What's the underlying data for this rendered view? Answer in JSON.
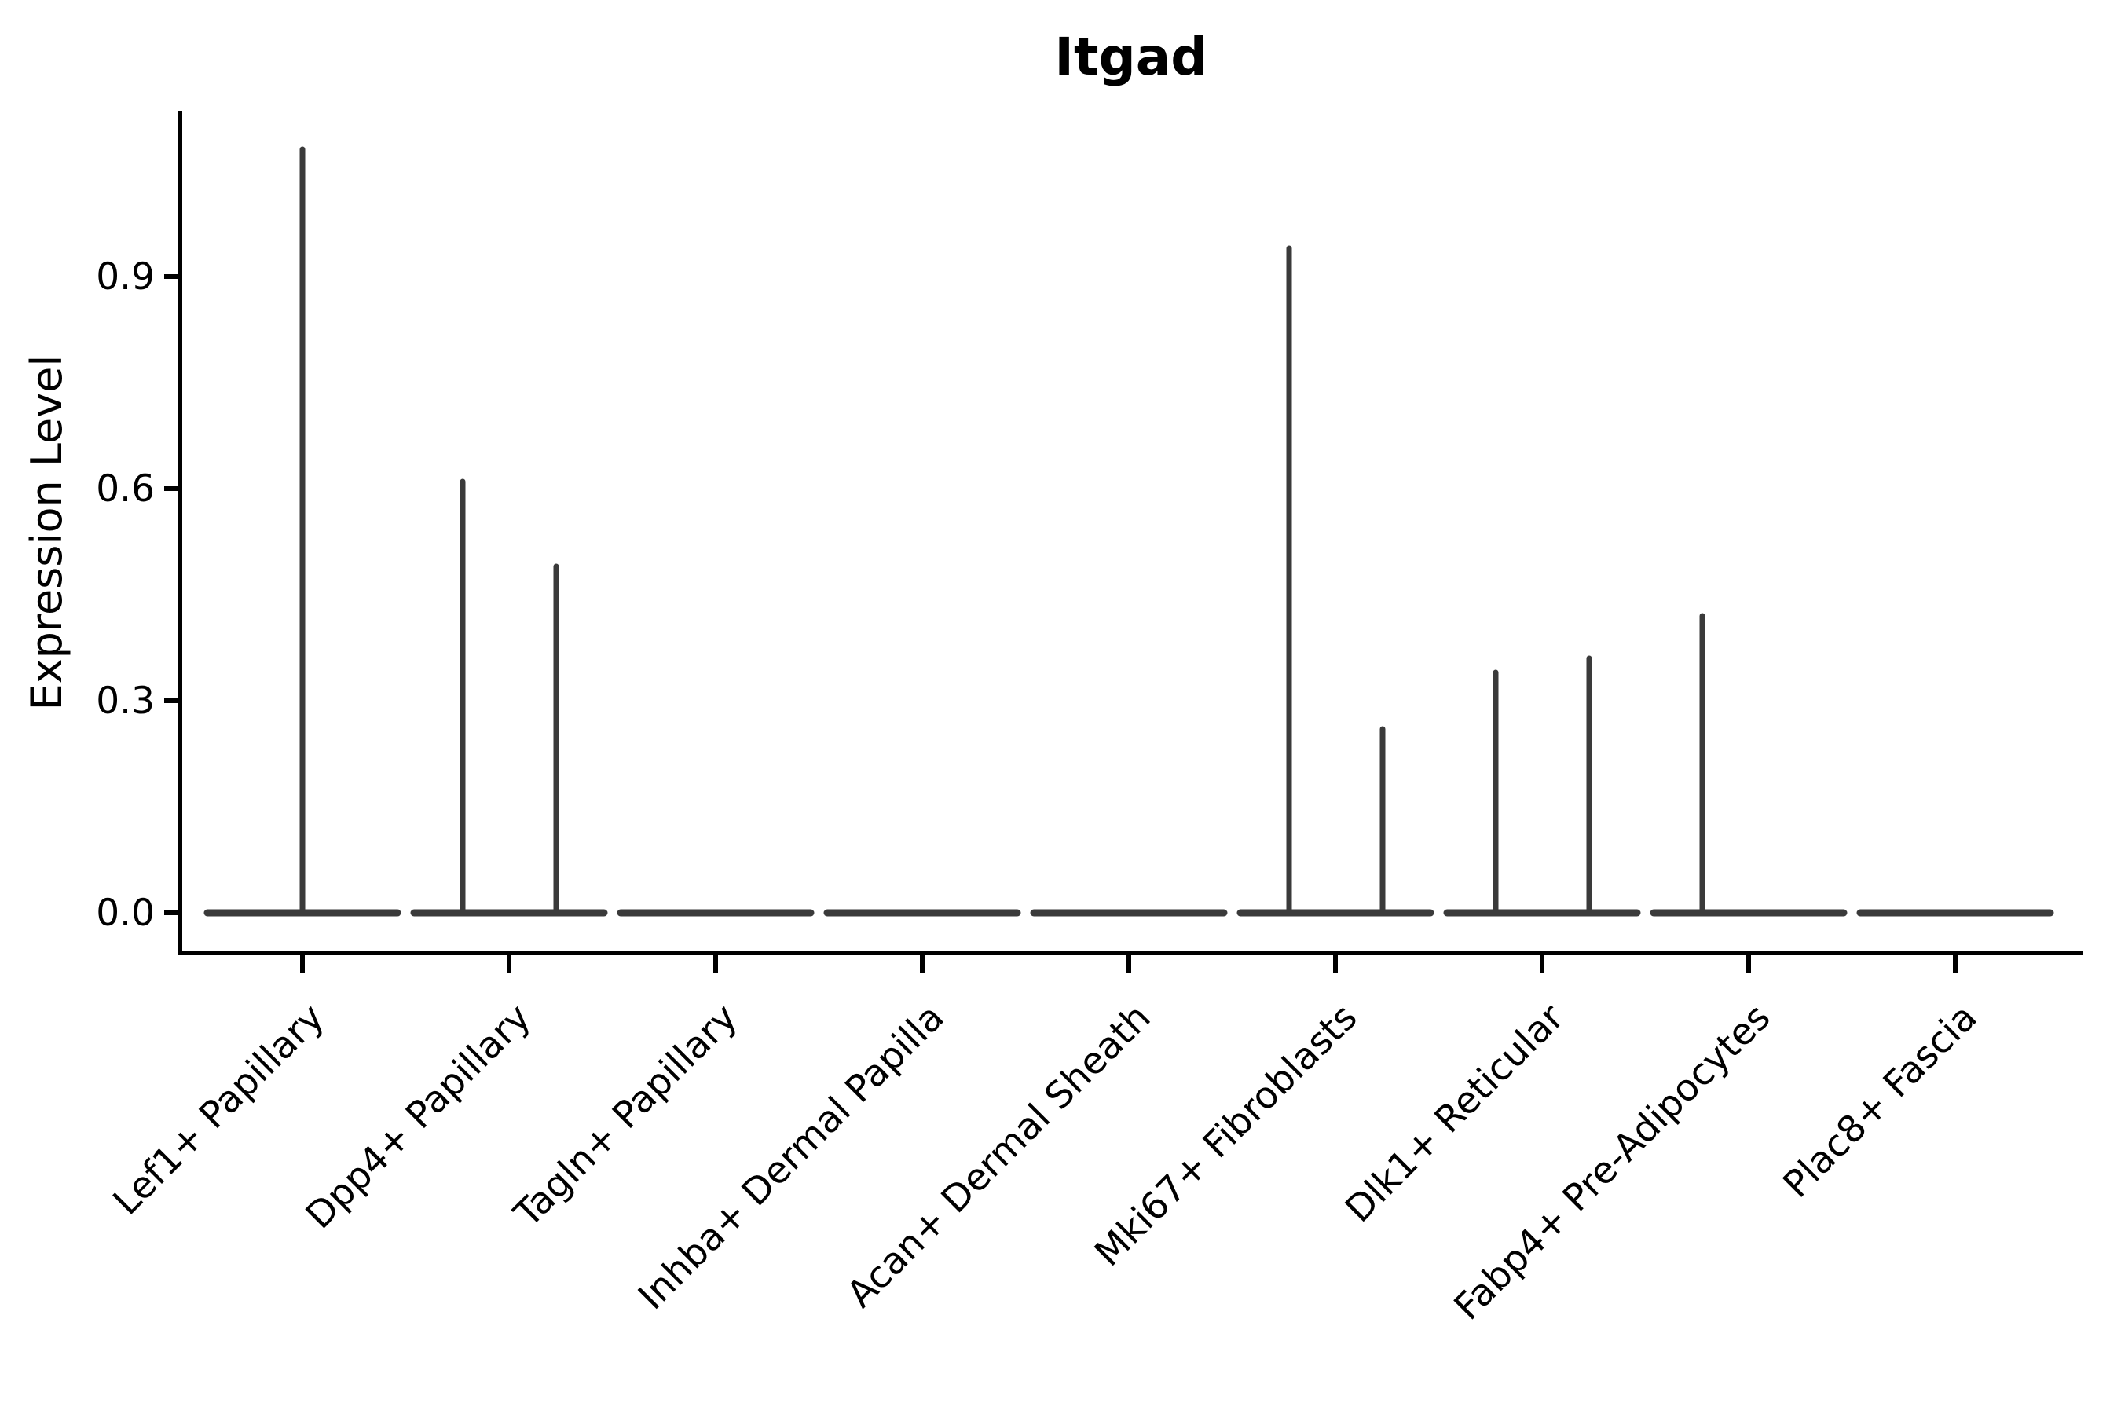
{
  "chart_data": {
    "type": "violin",
    "title": "Itgad",
    "ylabel": "Expression Level",
    "xlabel": "",
    "ytick_labels": [
      "0.0",
      "0.3",
      "0.6",
      "0.9"
    ],
    "ytick_values": [
      0.0,
      0.3,
      0.6,
      0.9
    ],
    "ylim": [
      -0.057,
      1.135
    ],
    "grid": false,
    "legend": "none",
    "colors": {
      "violin_stroke": "#3a3a3a",
      "axis": "#000000",
      "text": "#000000",
      "background": "#ffffff"
    },
    "categories": [
      {
        "label": "Lef1+ Papillary",
        "violins": [
          {
            "position": "center",
            "peak": 1.08
          }
        ]
      },
      {
        "label": "Dpp4+ Papillary",
        "violins": [
          {
            "position": "left",
            "peak": 0.61
          },
          {
            "position": "right",
            "peak": 0.49
          }
        ]
      },
      {
        "label": "Tagln+ Papillary",
        "violins": []
      },
      {
        "label": "Inhba+ Dermal Papilla",
        "violins": []
      },
      {
        "label": "Acan+ Dermal Sheath",
        "violins": []
      },
      {
        "label": "Mki67+ Fibroblasts",
        "violins": [
          {
            "position": "left",
            "peak": 0.94
          },
          {
            "position": "right",
            "peak": 0.26
          }
        ]
      },
      {
        "label": "Dlk1+ Reticular",
        "violins": [
          {
            "position": "left",
            "peak": 0.34
          },
          {
            "position": "right",
            "peak": 0.36
          }
        ]
      },
      {
        "label": "Fabp4+ Pre-Adipocytes",
        "violins": [
          {
            "position": "left",
            "peak": 0.42
          }
        ]
      },
      {
        "label": "Plac8+ Fascia",
        "violins": []
      }
    ]
  }
}
